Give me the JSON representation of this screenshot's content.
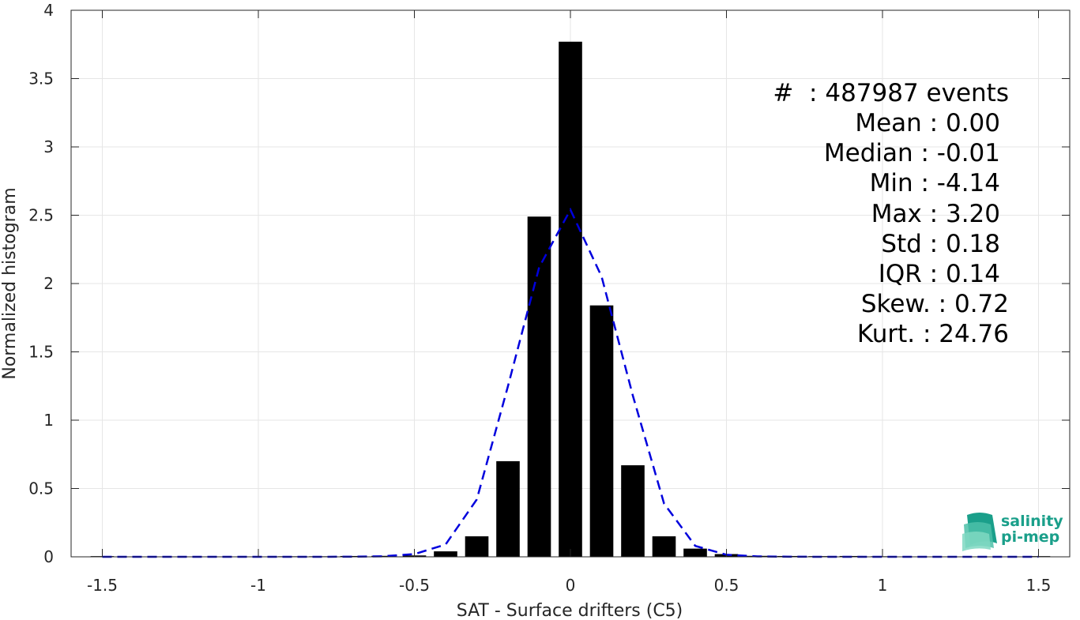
{
  "colors": {
    "bar": "#000000",
    "fit_line": "#0000dd",
    "grid": "#e6e6e6",
    "axis": "#262626",
    "logo_teal": "#1a9f8a",
    "logo_light": "#7fd8c2"
  },
  "chart_data": {
    "type": "bar",
    "xlabel": "SAT - Surface drifters (C5)",
    "ylabel": "Normalized histogram",
    "xlim": [
      -1.6,
      1.6
    ],
    "ylim": [
      0,
      4
    ],
    "xticks": [
      -1.5,
      -1,
      -0.5,
      0,
      0.5,
      1,
      1.5
    ],
    "xtick_labels": [
      "-1.5",
      "-1",
      "-0.5",
      "0",
      "0.5",
      "1",
      "1.5"
    ],
    "yticks": [
      0,
      0.5,
      1,
      1.5,
      2,
      2.5,
      3,
      3.5,
      4
    ],
    "ytick_labels": [
      "0",
      "0.5",
      "1",
      "1.5",
      "2",
      "2.5",
      "3",
      "3.5",
      "4"
    ],
    "grid": true,
    "bar_width": 0.075,
    "bars": {
      "x": [
        -1.5,
        -1.4,
        -1.3,
        -1.2,
        -1.1,
        -1.0,
        -0.9,
        -0.8,
        -0.7,
        -0.6,
        -0.5,
        -0.4,
        -0.3,
        -0.2,
        -0.1,
        0.0,
        0.1,
        0.2,
        0.3,
        0.4,
        0.5,
        0.6,
        0.7,
        0.8,
        0.9,
        1.0,
        1.1,
        1.2,
        1.3,
        1.4,
        1.5
      ],
      "values": [
        0.005,
        0.003,
        0.003,
        0.003,
        0.003,
        0.003,
        0.004,
        0.004,
        0.006,
        0.007,
        0.01,
        0.04,
        0.15,
        0.7,
        2.49,
        3.77,
        1.84,
        0.67,
        0.15,
        0.06,
        0.02,
        0.007,
        0.006,
        0.005,
        0.006,
        0.004,
        0.003,
        0.003,
        0.003,
        0.003,
        0.005
      ]
    },
    "fit": {
      "style": "dashed",
      "x": [
        -1.5,
        -1.4,
        -1.3,
        -1.2,
        -1.1,
        -1.0,
        -0.9,
        -0.8,
        -0.7,
        -0.6,
        -0.5,
        -0.4,
        -0.3,
        -0.2,
        -0.1,
        0.0,
        0.1,
        0.2,
        0.3,
        0.4,
        0.5,
        0.6,
        0.7,
        0.8,
        0.9,
        1.0,
        1.1,
        1.2,
        1.3,
        1.4,
        1.5
      ],
      "values": [
        0,
        0,
        0,
        0,
        0,
        0,
        0,
        0,
        0.001,
        0.004,
        0.02,
        0.09,
        0.42,
        1.25,
        2.12,
        2.54,
        2.05,
        1.18,
        0.39,
        0.08,
        0.015,
        0.003,
        0.001,
        0,
        0,
        0,
        0,
        0,
        0,
        0,
        0
      ]
    },
    "annotations": [
      "#  : 487987 events",
      "Mean : 0.00",
      "Median : -0.01",
      "Min : -4.14",
      "Max : 3.20",
      "Std : 0.18",
      "IQR : 0.14",
      "Skew. : 0.72",
      "Kurt. : 24.76"
    ]
  },
  "logo": {
    "line1": "salinity",
    "line2": "pi-mep"
  }
}
